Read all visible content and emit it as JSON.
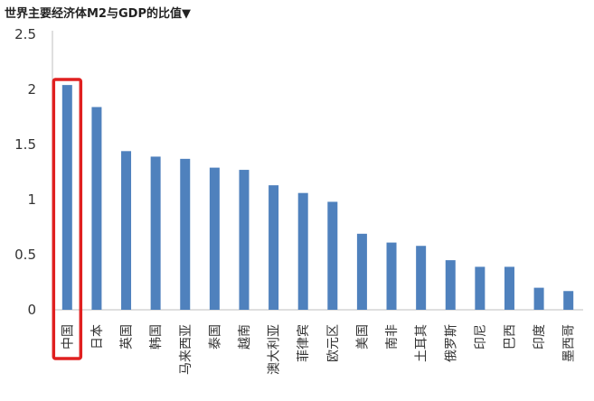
{
  "title": "世界主要经济体M2与GDP的比值▼",
  "colors": {
    "bar": "#4F81BD",
    "highlight": "#E02020",
    "axis": "#BFBFBF"
  },
  "chart_data": {
    "type": "bar",
    "title": "世界主要经济体M2与GDP的比值▼",
    "xlabel": "",
    "ylabel": "",
    "ylim": [
      0,
      2.5
    ],
    "yticks": [
      "0",
      "0.5",
      "1",
      "1.5",
      "2",
      "2.5"
    ],
    "grid": false,
    "legend": "none",
    "categories": [
      "中国",
      "日本",
      "英国",
      "韩国",
      "马来西亚",
      "泰国",
      "越南",
      "澳大利亚",
      "菲律宾",
      "欧元区",
      "美国",
      "南非",
      "土耳其",
      "俄罗斯",
      "印尼",
      "巴西",
      "印度",
      "墨西哥"
    ],
    "values": [
      2.04,
      1.84,
      1.44,
      1.39,
      1.37,
      1.29,
      1.27,
      1.13,
      1.06,
      0.98,
      0.69,
      0.61,
      0.58,
      0.45,
      0.39,
      0.39,
      0.2,
      0.17
    ],
    "highlighted_category": "中国"
  }
}
